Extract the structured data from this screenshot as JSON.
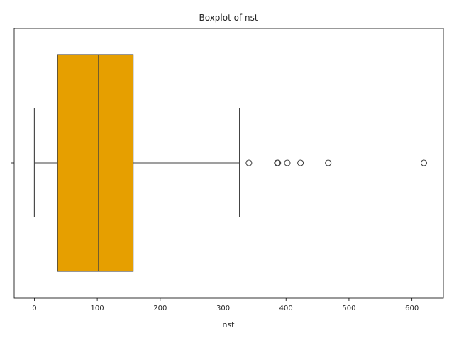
{
  "chart_data": {
    "type": "boxplot",
    "title": "Boxplot of nst",
    "xlabel": "nst",
    "ylabel": "",
    "orientation": "horizontal",
    "xlim": [
      -32,
      650
    ],
    "xticks": [
      0,
      100,
      200,
      300,
      400,
      500,
      600
    ],
    "xtick_labels": [
      "0",
      "100",
      "200",
      "300",
      "400",
      "500",
      "600"
    ],
    "grid": false,
    "box": {
      "color": "#e69f00",
      "whisker_low": 0,
      "q1": 37,
      "median": 102,
      "q3": 157,
      "whisker_high": 326,
      "outliers": [
        341,
        386,
        387,
        402,
        423,
        467,
        619
      ]
    }
  }
}
